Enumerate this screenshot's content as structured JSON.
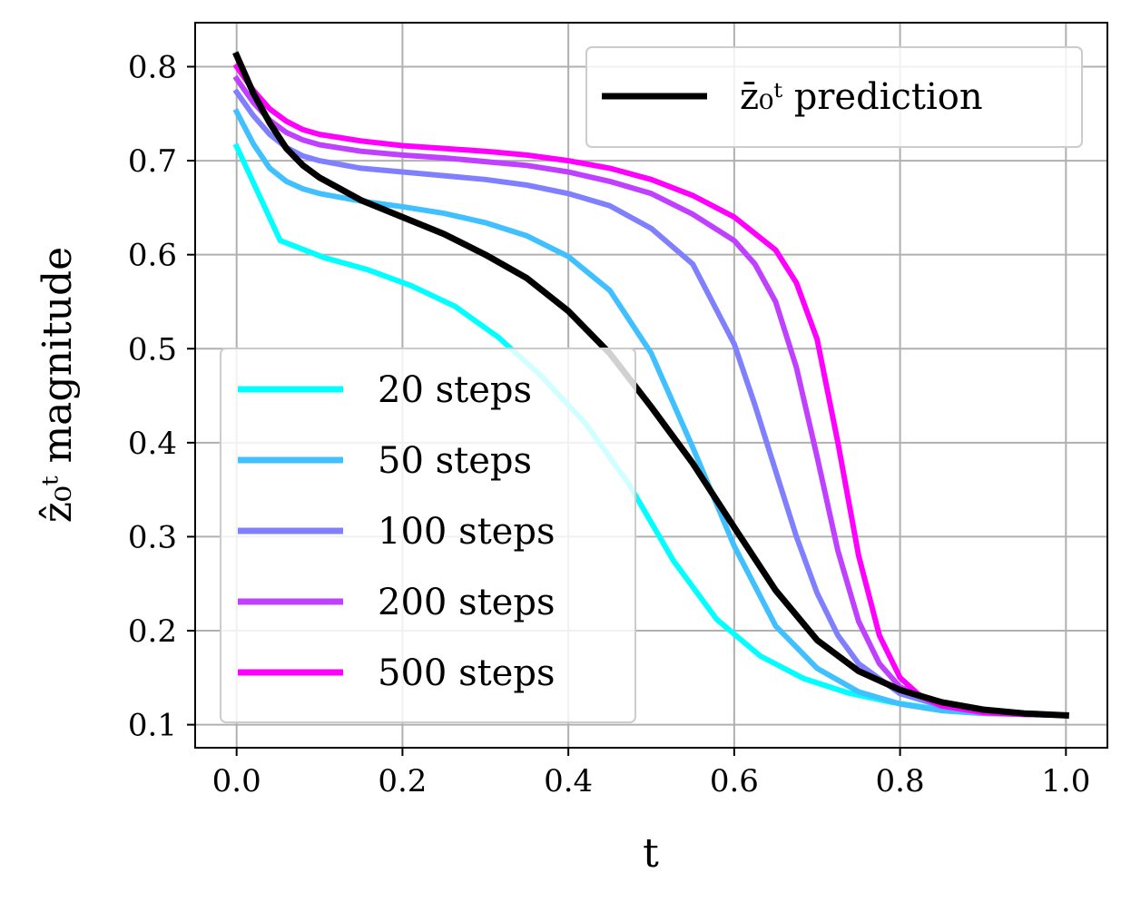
{
  "chart_data": {
    "type": "line",
    "xlabel": "t",
    "ylabel": "ẑ₀ᵗ magnitude",
    "xlim": [
      -0.05,
      1.05
    ],
    "ylim": [
      0.0755,
      0.8468
    ],
    "xticks": [
      0.0,
      0.2,
      0.4,
      0.6,
      0.8,
      1.0
    ],
    "xtick_labels": [
      "0.0",
      "0.2",
      "0.4",
      "0.6",
      "0.8",
      "1.0"
    ],
    "yticks": [
      0.1,
      0.2,
      0.3,
      0.4,
      0.5,
      0.6,
      0.7,
      0.8
    ],
    "ytick_labels": [
      "0.1",
      "0.2",
      "0.3",
      "0.4",
      "0.5",
      "0.6",
      "0.7",
      "0.8"
    ],
    "grid": true,
    "legend_steps_placement": "lower-left",
    "legend_prediction_placement": "upper-right",
    "series": [
      {
        "name": "20 steps",
        "color": "#00ffff",
        "x": [
          0.0,
          0.0526,
          0.1053,
          0.1579,
          0.2105,
          0.2632,
          0.3158,
          0.3684,
          0.4211,
          0.4737,
          0.5263,
          0.5789,
          0.6316,
          0.6842,
          0.7368,
          0.7895,
          0.8421,
          0.8947,
          0.9474,
          1.0
        ],
        "y": [
          0.715,
          0.615,
          0.597,
          0.584,
          0.567,
          0.545,
          0.512,
          0.47,
          0.42,
          0.355,
          0.275,
          0.212,
          0.173,
          0.149,
          0.134,
          0.124,
          0.117,
          0.113,
          0.111,
          0.11
        ]
      },
      {
        "name": "50 steps",
        "color": "#40c0ff",
        "x": [
          0.0,
          0.02,
          0.04,
          0.06,
          0.08,
          0.1,
          0.15,
          0.2,
          0.25,
          0.3,
          0.35,
          0.4,
          0.45,
          0.5,
          0.55,
          0.6,
          0.65,
          0.7,
          0.75,
          0.8,
          0.85,
          0.9,
          0.95,
          1.0
        ],
        "y": [
          0.752,
          0.718,
          0.692,
          0.678,
          0.67,
          0.665,
          0.657,
          0.651,
          0.644,
          0.634,
          0.62,
          0.598,
          0.562,
          0.495,
          0.395,
          0.29,
          0.205,
          0.16,
          0.135,
          0.122,
          0.115,
          0.112,
          0.111,
          0.11
        ]
      },
      {
        "name": "100 steps",
        "color": "#8080ff",
        "x": [
          0.0,
          0.02,
          0.04,
          0.06,
          0.08,
          0.1,
          0.15,
          0.2,
          0.25,
          0.3,
          0.35,
          0.4,
          0.45,
          0.5,
          0.55,
          0.6,
          0.625,
          0.65,
          0.675,
          0.7,
          0.725,
          0.75,
          0.8,
          0.85,
          0.9,
          0.95,
          1.0
        ],
        "y": [
          0.773,
          0.748,
          0.728,
          0.714,
          0.705,
          0.7,
          0.692,
          0.688,
          0.684,
          0.68,
          0.674,
          0.665,
          0.652,
          0.628,
          0.59,
          0.505,
          0.44,
          0.37,
          0.3,
          0.24,
          0.195,
          0.165,
          0.133,
          0.12,
          0.114,
          0.111,
          0.11
        ]
      },
      {
        "name": "200 steps",
        "color": "#c040ff",
        "x": [
          0.0,
          0.02,
          0.04,
          0.06,
          0.08,
          0.1,
          0.15,
          0.2,
          0.25,
          0.3,
          0.35,
          0.4,
          0.45,
          0.5,
          0.55,
          0.6,
          0.625,
          0.65,
          0.675,
          0.7,
          0.725,
          0.75,
          0.775,
          0.8,
          0.85,
          0.9,
          0.95,
          1.0
        ],
        "y": [
          0.787,
          0.762,
          0.743,
          0.73,
          0.722,
          0.717,
          0.71,
          0.706,
          0.703,
          0.699,
          0.695,
          0.688,
          0.678,
          0.665,
          0.643,
          0.615,
          0.59,
          0.55,
          0.48,
          0.385,
          0.285,
          0.21,
          0.165,
          0.14,
          0.122,
          0.114,
          0.111,
          0.11
        ]
      },
      {
        "name": "500 steps",
        "color": "#ff00ff",
        "x": [
          0.0,
          0.02,
          0.04,
          0.06,
          0.08,
          0.1,
          0.15,
          0.2,
          0.25,
          0.3,
          0.35,
          0.4,
          0.45,
          0.5,
          0.55,
          0.6,
          0.65,
          0.675,
          0.7,
          0.725,
          0.75,
          0.775,
          0.8,
          0.825,
          0.85,
          0.9,
          0.95,
          1.0
        ],
        "y": [
          0.8,
          0.775,
          0.755,
          0.742,
          0.733,
          0.728,
          0.721,
          0.716,
          0.713,
          0.71,
          0.706,
          0.7,
          0.692,
          0.68,
          0.663,
          0.64,
          0.605,
          0.57,
          0.51,
          0.4,
          0.28,
          0.195,
          0.15,
          0.13,
          0.12,
          0.113,
          0.111,
          0.11
        ]
      },
      {
        "name": "z̄₀ᵗ prediction",
        "color": "#000000",
        "x": [
          0.0,
          0.02,
          0.04,
          0.06,
          0.08,
          0.1,
          0.15,
          0.2,
          0.25,
          0.3,
          0.35,
          0.4,
          0.45,
          0.5,
          0.55,
          0.6,
          0.65,
          0.7,
          0.75,
          0.8,
          0.85,
          0.9,
          0.95,
          1.0
        ],
        "y": [
          0.812,
          0.772,
          0.74,
          0.713,
          0.695,
          0.682,
          0.658,
          0.64,
          0.622,
          0.6,
          0.575,
          0.54,
          0.495,
          0.438,
          0.378,
          0.31,
          0.243,
          0.19,
          0.157,
          0.137,
          0.124,
          0.116,
          0.112,
          0.11
        ]
      }
    ]
  }
}
